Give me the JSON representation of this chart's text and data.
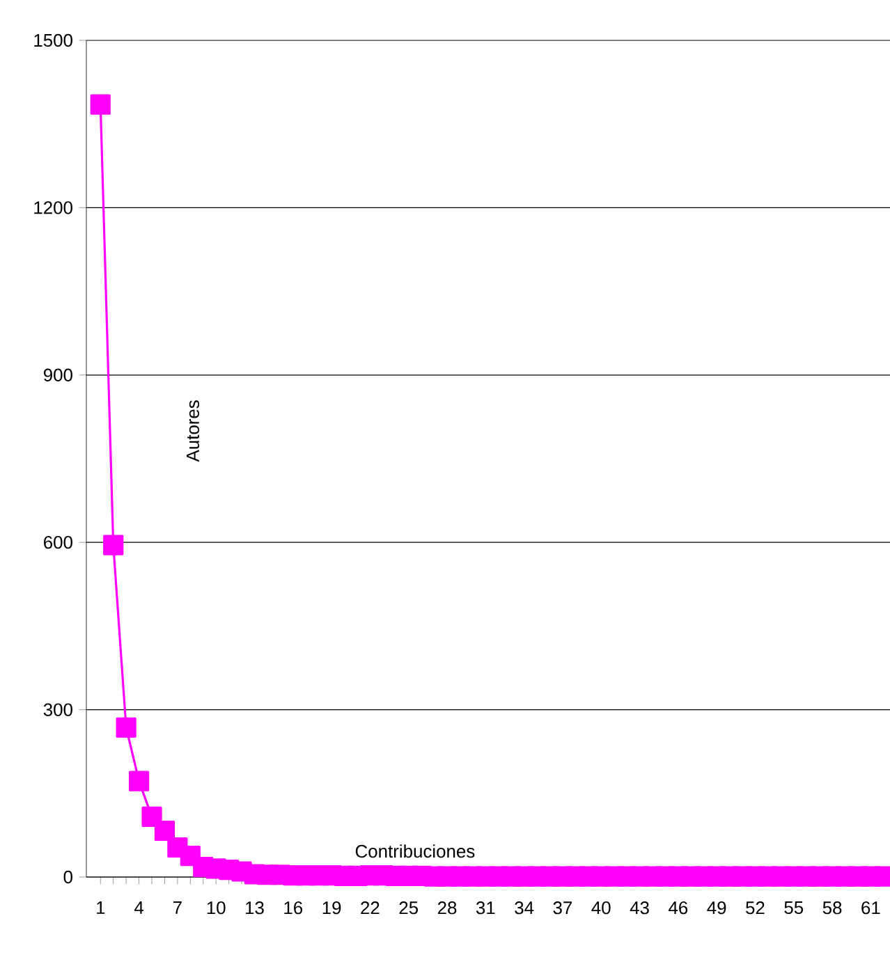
{
  "chart_data": {
    "type": "line",
    "xlabel": "Contribuciones",
    "ylabel": "Autores",
    "categories": [
      "1",
      null,
      null,
      "4",
      null,
      null,
      "7",
      null,
      null,
      "10",
      null,
      null,
      "13",
      null,
      null,
      "16",
      null,
      null,
      "19",
      null,
      null,
      "22",
      null,
      null,
      "25",
      null,
      null,
      "28",
      null,
      null,
      "31",
      null,
      null,
      "34",
      null,
      null,
      "37",
      null,
      null,
      "40",
      null,
      null,
      "43",
      null,
      null,
      "46",
      null,
      null,
      "49",
      null,
      null,
      "52",
      null,
      null,
      "55",
      null,
      null,
      "58",
      null,
      null,
      "61",
      null
    ],
    "series": [
      {
        "color": "#ff00ff",
        "values": [
          1385,
          595,
          268,
          172,
          108,
          83,
          53,
          38,
          18,
          15,
          13,
          10,
          5,
          4,
          4,
          3,
          3,
          3,
          3,
          2,
          2,
          3,
          3,
          2,
          2,
          2,
          1,
          1,
          1,
          1,
          1,
          1,
          1,
          1,
          1,
          1,
          1,
          1,
          1,
          1,
          1,
          1,
          1,
          1,
          1,
          1,
          1,
          1,
          1,
          1,
          1,
          1,
          1,
          1,
          1,
          1,
          1,
          1,
          1,
          1,
          1,
          1
        ]
      }
    ],
    "ylim": [
      0,
      1500
    ],
    "yticks": [
      0,
      300,
      600,
      900,
      1200,
      1500
    ],
    "grid": "y",
    "marker": "square",
    "line_style": "solid"
  }
}
